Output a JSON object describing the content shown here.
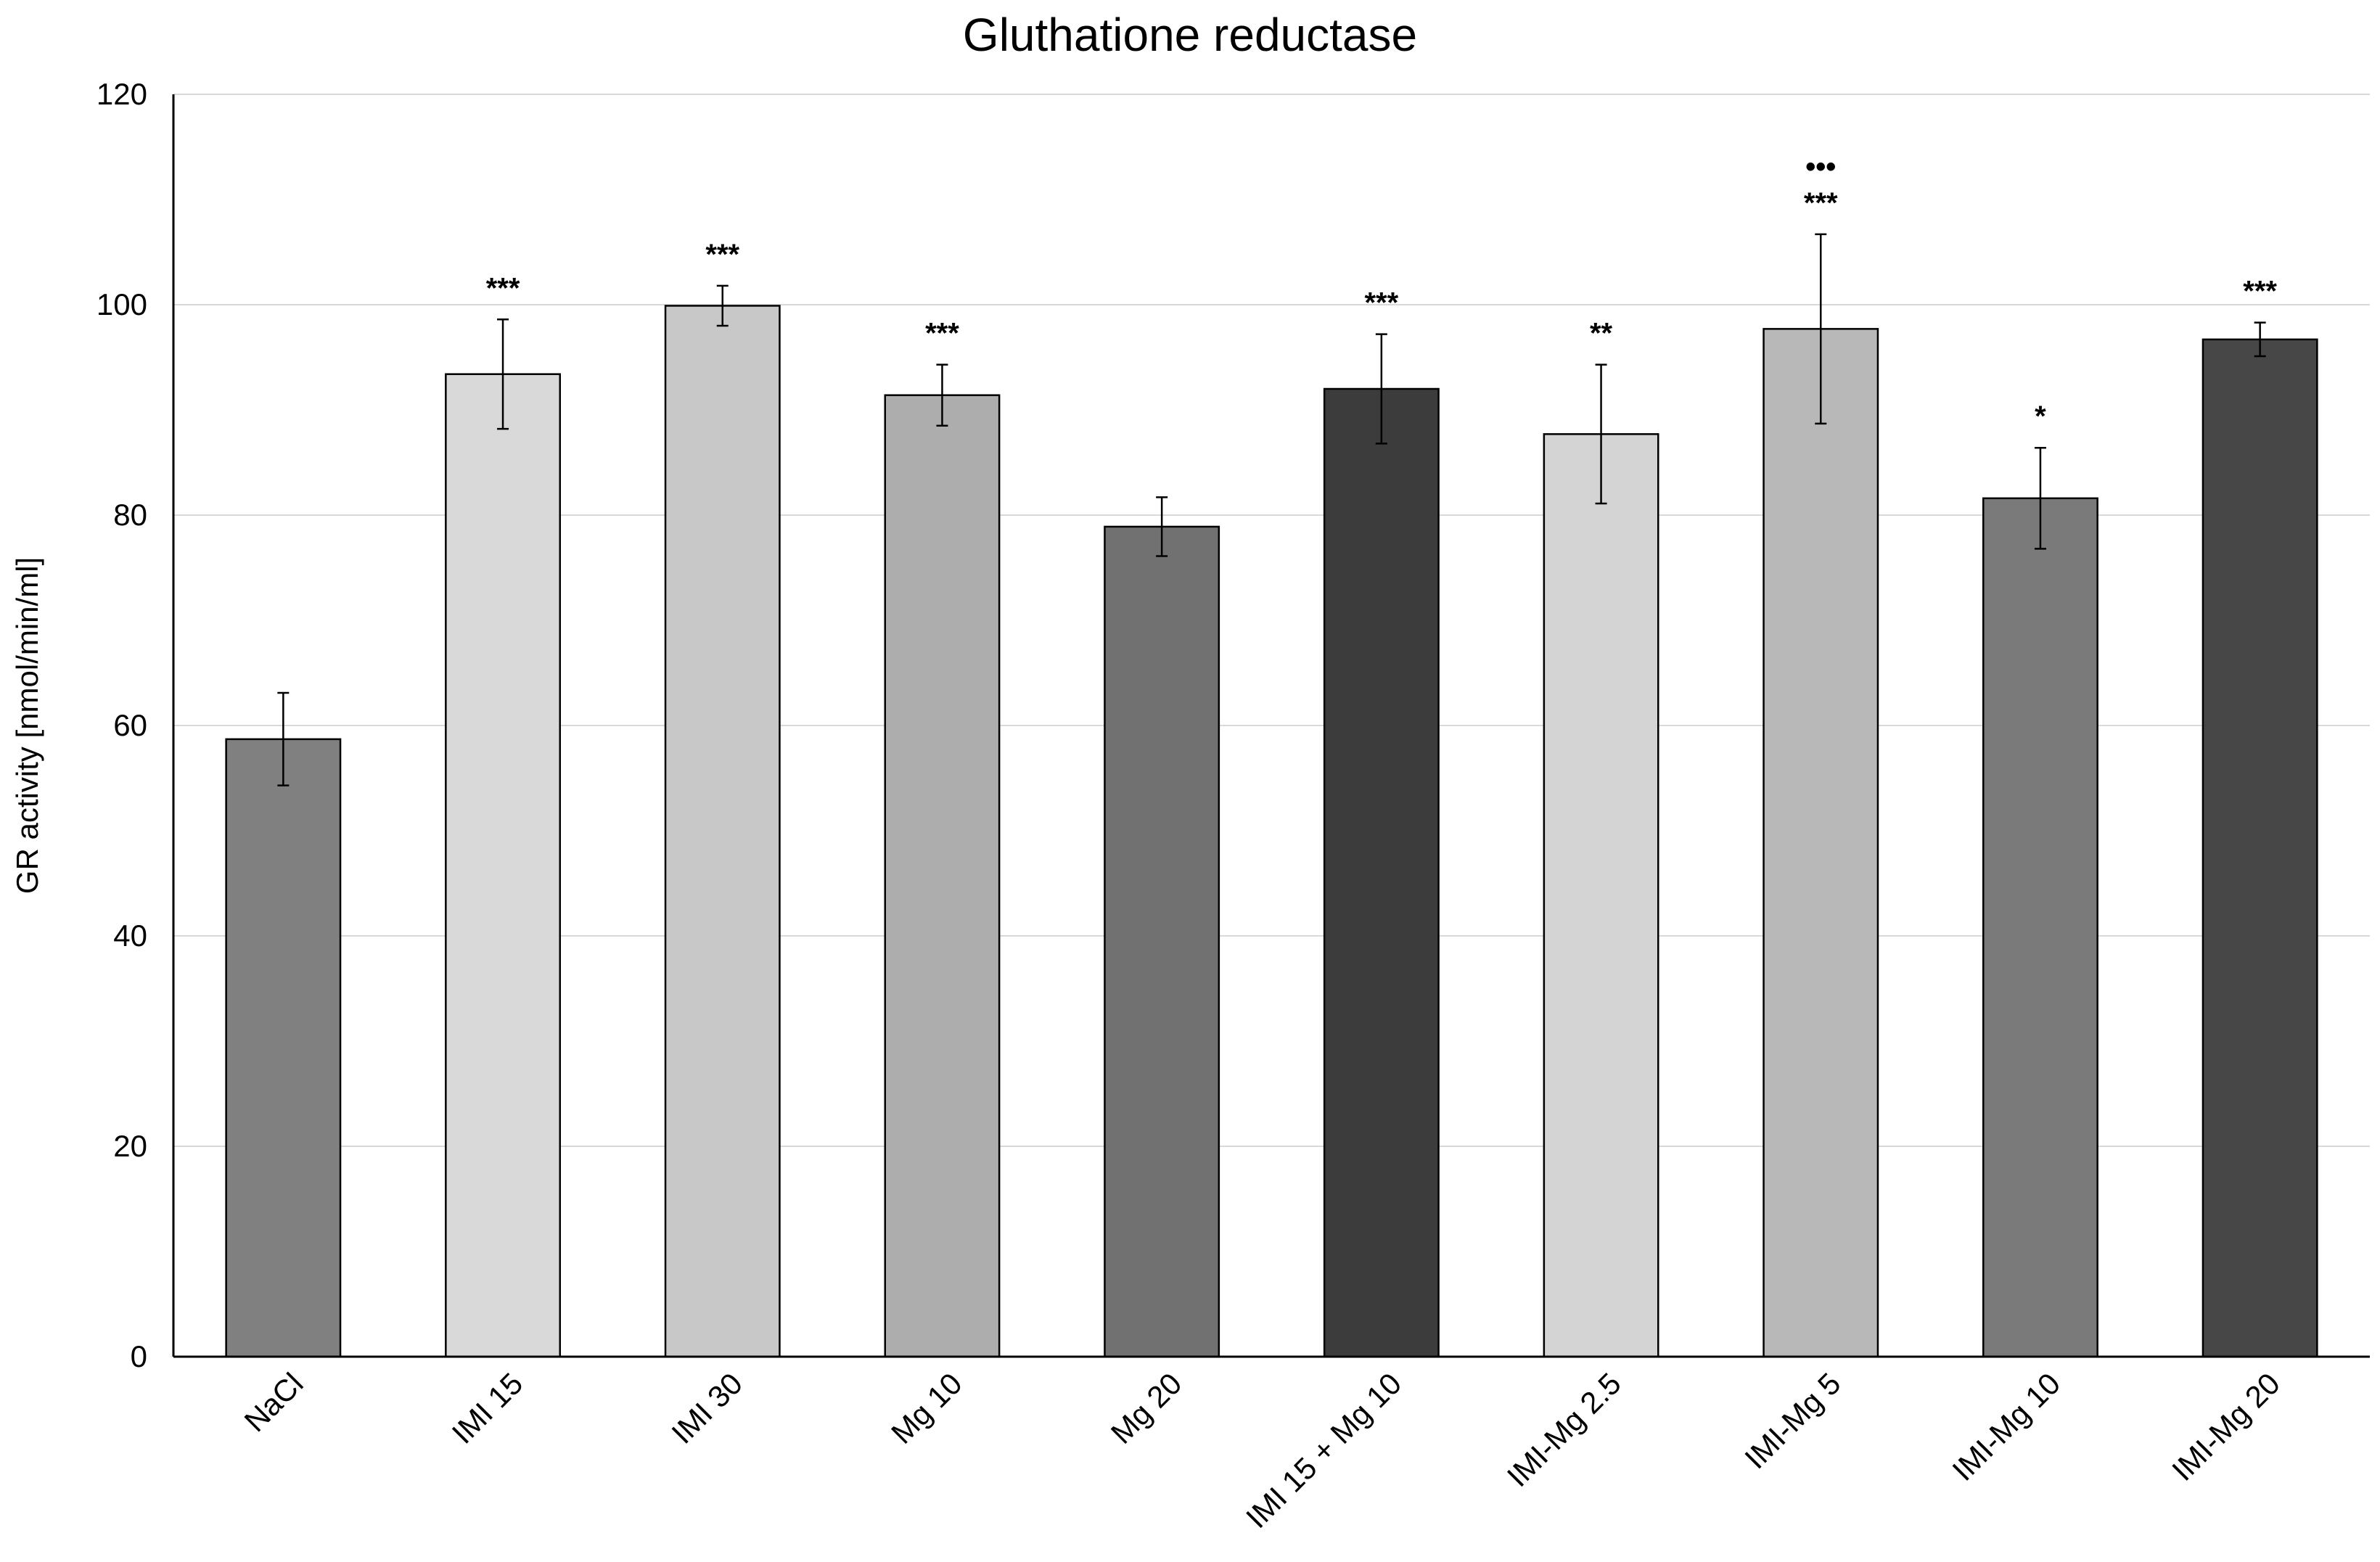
{
  "chart_data": {
    "type": "bar",
    "title": "Gluthatione reductase",
    "xlabel": "",
    "ylabel": "GR activity [nmol/min/ml]",
    "ylim": [
      0,
      120
    ],
    "yticks": [
      "0",
      "20",
      "40",
      "60",
      "80",
      "100",
      "120"
    ],
    "grid": true,
    "categories": [
      "NaCl",
      "IMI 15",
      "IMI 30",
      "Mg 10",
      "Mg 20",
      "IMI 15 + Mg 10",
      "IMI-Mg 2.5",
      "IMI-Mg 5",
      "IMI-Mg 10",
      "IMI-Mg 20"
    ],
    "values": [
      58.7,
      93.4,
      99.9,
      91.4,
      78.9,
      92.0,
      87.7,
      97.7,
      81.6,
      96.7
    ],
    "errors": [
      4.4,
      5.2,
      1.9,
      2.9,
      2.8,
      5.2,
      6.6,
      9.0,
      4.8,
      1.6
    ],
    "significance": [
      "",
      "***",
      "***",
      "***",
      "",
      "***",
      "**",
      "***",
      "*",
      "***"
    ],
    "significance_extra": [
      "",
      "",
      "",
      "",
      "",
      "",
      "",
      "•••",
      "",
      ""
    ],
    "colors": [
      "#808080",
      "#d9d9d9",
      "#c8c8c8",
      "#adadad",
      "#717171",
      "#3c3c3c",
      "#d4d4d4",
      "#b8b8b8",
      "#7a7a7a",
      "#474747"
    ]
  }
}
